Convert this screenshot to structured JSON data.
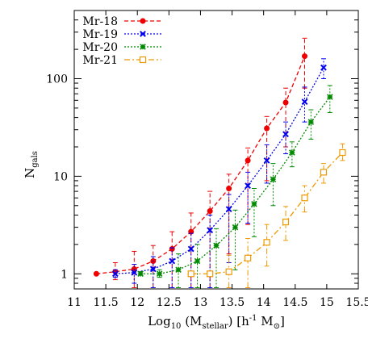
{
  "chart_data": {
    "type": "line",
    "x_axis": {
      "label_main": "Log",
      "label_sub": "10",
      "label_rest_1": " (M",
      "label_sub2": "stellar",
      "label_rest_2": ") [h",
      "label_sup": "-1",
      "label_rest_3": " M",
      "label_sub3": "⊙",
      "label_rest_4": "]",
      "range": [
        11,
        15.5
      ],
      "ticks": [
        "11",
        "11.5",
        "12",
        "12.5",
        "13",
        "13.5",
        "14",
        "14.5",
        "15",
        "15.5"
      ]
    },
    "y_axis": {
      "label_main": "N",
      "label_sub": "gals",
      "scale": "log",
      "range": [
        0.7,
        500
      ],
      "ticks": [
        "1",
        "10",
        "100"
      ]
    },
    "legend_position": "top-left",
    "series": [
      {
        "name": "Mr-18",
        "color": "#ee0000",
        "marker": "filled-circle",
        "line": "dashed",
        "x": [
          11.35,
          11.65,
          11.95,
          12.25,
          12.55,
          12.85,
          13.15,
          13.45,
          13.75,
          14.05,
          14.35,
          14.65
        ],
        "y": [
          1.0,
          1.05,
          1.12,
          1.35,
          1.8,
          2.7,
          4.4,
          7.5,
          14.5,
          31,
          57,
          170
        ],
        "err_low": [
          0.99,
          0.87,
          0.72,
          0.72,
          0.72,
          0.72,
          0.72,
          1.6,
          3.2,
          9,
          20,
          80
        ],
        "err_high": [
          1.02,
          1.3,
          1.7,
          1.95,
          2.7,
          4.2,
          7,
          10.5,
          19.5,
          41,
          80,
          260
        ]
      },
      {
        "name": "Mr-19",
        "color": "#0000ee",
        "marker": "x",
        "line": "dotted",
        "x": [
          11.65,
          11.95,
          12.25,
          12.55,
          12.85,
          13.15,
          13.45,
          13.75,
          14.05,
          14.35,
          14.65,
          14.95
        ],
        "y": [
          1.0,
          1.03,
          1.12,
          1.35,
          1.8,
          2.8,
          4.6,
          8.0,
          14.5,
          27,
          58,
          130
        ],
        "err_low": [
          0.92,
          0.8,
          0.72,
          0.72,
          0.72,
          0.72,
          1.3,
          3.3,
          8.5,
          17,
          36,
          100
        ],
        "err_high": [
          1.1,
          1.25,
          1.5,
          1.85,
          2.6,
          4.0,
          6.5,
          11.0,
          21,
          36,
          82,
          160
        ]
      },
      {
        "name": "Mr-20",
        "color": "#008800",
        "marker": "star",
        "line": "dotted",
        "x": [
          12.05,
          12.35,
          12.65,
          12.95,
          13.25,
          13.55,
          13.85,
          14.15,
          14.45,
          14.75,
          15.05
        ],
        "y": [
          1.0,
          1.0,
          1.1,
          1.35,
          1.95,
          3.0,
          5.2,
          9.3,
          17.5,
          36,
          65
        ],
        "err_low": [
          0.97,
          0.92,
          0.72,
          0.72,
          0.72,
          1.1,
          2.4,
          5.0,
          12.5,
          24,
          45
        ],
        "err_high": [
          1.05,
          1.1,
          1.6,
          2.0,
          2.9,
          4.5,
          7.5,
          13.5,
          22.5,
          48,
          85
        ]
      },
      {
        "name": "Mr-21",
        "color": "#ee9900",
        "marker": "open-square",
        "line": "dash-dot",
        "x": [
          12.85,
          13.15,
          13.45,
          13.75,
          14.05,
          14.35,
          14.65,
          14.95,
          15.25
        ],
        "y": [
          1.0,
          1.0,
          1.05,
          1.45,
          2.1,
          3.4,
          6.0,
          11,
          17.5
        ],
        "err_low": [
          0.97,
          0.97,
          0.72,
          0.72,
          1.2,
          2.2,
          4.3,
          8.5,
          14.5
        ],
        "err_high": [
          1.02,
          1.05,
          1.55,
          2.3,
          3.2,
          4.9,
          8.0,
          13.5,
          21.5
        ]
      }
    ]
  }
}
